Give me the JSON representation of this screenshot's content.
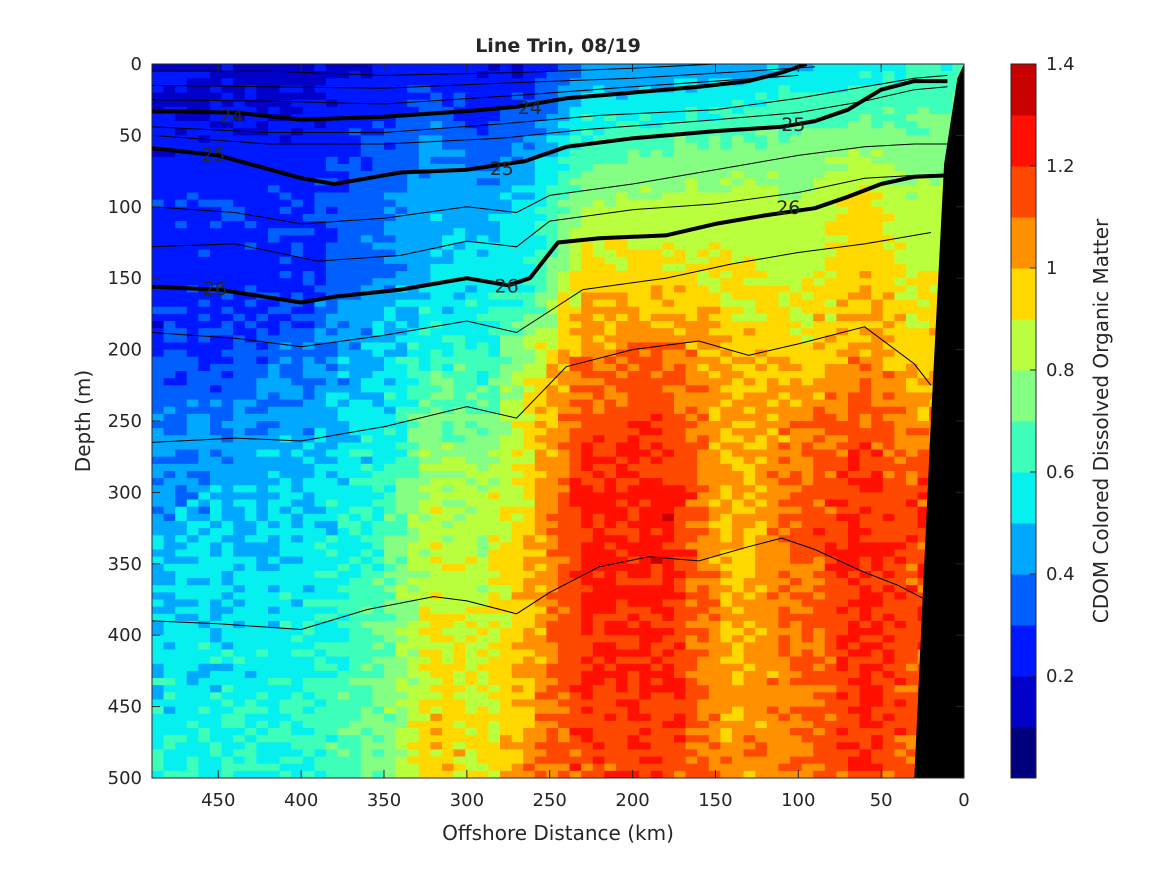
{
  "chart_data": {
    "type": "heatmap",
    "title": "Line Trin, 08/19",
    "xlabel": "Offshore Distance (km)",
    "ylabel": "Depth (m)",
    "xlim": [
      490,
      0
    ],
    "ylim": [
      0,
      500
    ],
    "x_reversed": true,
    "y_reversed": true,
    "x_ticks": [
      450,
      400,
      350,
      300,
      250,
      200,
      150,
      100,
      50,
      0
    ],
    "y_ticks": [
      0,
      50,
      100,
      150,
      200,
      250,
      300,
      350,
      400,
      450,
      500
    ],
    "colorbar": {
      "label": "CDOM Colored Dissolved Organic Matter",
      "range": [
        0,
        1.4
      ],
      "step": 0.1,
      "ticks": [
        0.2,
        0.4,
        0.6,
        0.8,
        1,
        1.2,
        1.4
      ],
      "colors": [
        "#00007f",
        "#0000c8",
        "#0018ff",
        "#0060ff",
        "#00a8ff",
        "#06f0f0",
        "#3dffba",
        "#84ff84",
        "#baff3d",
        "#ffd800",
        "#ff9000",
        "#ff4800",
        "#ff1000",
        "#c80000"
      ]
    },
    "field_columns": [
      {
        "x": 490,
        "values": [
          0.2,
          0.2,
          0.28,
          0.22,
          0.28,
          0.38,
          0.42,
          0.52,
          0.58
        ]
      },
      {
        "x": 450,
        "values": [
          0.18,
          0.22,
          0.3,
          0.26,
          0.3,
          0.4,
          0.46,
          0.54,
          0.6
        ]
      },
      {
        "x": 400,
        "values": [
          0.15,
          0.22,
          0.28,
          0.28,
          0.36,
          0.44,
          0.5,
          0.56,
          0.62
        ]
      },
      {
        "x": 350,
        "values": [
          0.22,
          0.3,
          0.38,
          0.4,
          0.48,
          0.55,
          0.62,
          0.7,
          0.74
        ]
      },
      {
        "x": 320,
        "values": [
          0.28,
          0.4,
          0.48,
          0.5,
          0.62,
          0.75,
          0.85,
          0.92,
          0.98
        ]
      },
      {
        "x": 290,
        "values": [
          0.18,
          0.3,
          0.45,
          0.55,
          0.6,
          0.7,
          0.8,
          0.88,
          0.9
        ]
      },
      {
        "x": 260,
        "values": [
          0.22,
          0.38,
          0.55,
          0.6,
          0.82,
          0.95,
          0.98,
          1.02,
          1.08
        ]
      },
      {
        "x": 230,
        "values": [
          0.4,
          0.62,
          0.8,
          0.95,
          1.05,
          1.15,
          1.22,
          1.2,
          1.15
        ]
      },
      {
        "x": 180,
        "values": [
          0.42,
          0.65,
          0.85,
          0.92,
          1.1,
          1.18,
          1.25,
          1.22,
          1.18
        ]
      },
      {
        "x": 140,
        "values": [
          0.45,
          0.7,
          0.85,
          0.9,
          1.0,
          0.98,
          0.96,
          1.0,
          1.05
        ]
      },
      {
        "x": 100,
        "values": [
          0.5,
          0.72,
          0.82,
          0.86,
          0.94,
          1.05,
          1.12,
          1.1,
          1.08
        ]
      },
      {
        "x": 60,
        "values": [
          0.55,
          0.75,
          0.95,
          0.98,
          1.05,
          1.15,
          1.2,
          1.22,
          1.18
        ]
      },
      {
        "x": 30,
        "values": [
          0.6,
          0.72,
          0.82,
          0.88,
          0.95,
          1.05,
          1.15,
          1.15,
          1.1
        ]
      }
    ],
    "field_depths": [
      0,
      50,
      100,
      150,
      200,
      250,
      300,
      400,
      500
    ],
    "contours_labeled": [
      {
        "label": "24",
        "points": [
          [
            490,
            33
          ],
          [
            440,
            34
          ],
          [
            400,
            39
          ],
          [
            350,
            37
          ],
          [
            300,
            33
          ],
          [
            270,
            30
          ],
          [
            240,
            24
          ],
          [
            200,
            20
          ],
          [
            160,
            16
          ],
          [
            130,
            12
          ],
          [
            110,
            6
          ],
          [
            95,
            0
          ]
        ]
      },
      {
        "label": "25",
        "points": [
          [
            490,
            59
          ],
          [
            450,
            64
          ],
          [
            400,
            80
          ],
          [
            380,
            84
          ],
          [
            340,
            76
          ],
          [
            300,
            74
          ],
          [
            265,
            68
          ],
          [
            240,
            58
          ],
          [
            200,
            52
          ],
          [
            150,
            47
          ],
          [
            110,
            44
          ],
          [
            90,
            40
          ],
          [
            70,
            32
          ],
          [
            50,
            18
          ],
          [
            30,
            12
          ],
          [
            10,
            12
          ]
        ]
      },
      {
        "label": "26",
        "points": [
          [
            490,
            156
          ],
          [
            450,
            158
          ],
          [
            400,
            167
          ],
          [
            380,
            163
          ],
          [
            340,
            158
          ],
          [
            300,
            150
          ],
          [
            275,
            155
          ],
          [
            262,
            150
          ],
          [
            245,
            125
          ],
          [
            220,
            122
          ],
          [
            180,
            120
          ],
          [
            150,
            112
          ],
          [
            120,
            106
          ],
          [
            90,
            101
          ],
          [
            70,
            93
          ],
          [
            50,
            84
          ],
          [
            30,
            79
          ],
          [
            10,
            78
          ]
        ]
      }
    ],
    "contour_labels": [
      {
        "label": "24",
        "x": 442,
        "y": 36
      },
      {
        "label": "24",
        "x": 262,
        "y": 30
      },
      {
        "label": "25",
        "x": 453,
        "y": 63
      },
      {
        "label": "25",
        "x": 279,
        "y": 73
      },
      {
        "label": "25",
        "x": 103,
        "y": 42
      },
      {
        "label": "26",
        "x": 452,
        "y": 157
      },
      {
        "label": "26",
        "x": 276,
        "y": 155
      },
      {
        "label": "26",
        "x": 106,
        "y": 100
      }
    ],
    "contours_thin": [
      [
        [
          490,
          5
        ],
        [
          420,
          5
        ],
        [
          350,
          8
        ],
        [
          270,
          6
        ],
        [
          200,
          3
        ],
        [
          150,
          0
        ]
      ],
      [
        [
          490,
          15
        ],
        [
          420,
          16
        ],
        [
          350,
          17
        ],
        [
          270,
          13
        ],
        [
          200,
          10
        ],
        [
          130,
          5
        ],
        [
          90,
          2
        ]
      ],
      [
        [
          490,
          25
        ],
        [
          420,
          26
        ],
        [
          350,
          28
        ],
        [
          270,
          22
        ],
        [
          200,
          16
        ],
        [
          150,
          12
        ],
        [
          100,
          8
        ]
      ],
      [
        [
          490,
          44
        ],
        [
          420,
          48
        ],
        [
          350,
          48
        ],
        [
          280,
          42
        ],
        [
          220,
          36
        ],
        [
          150,
          32
        ],
        [
          100,
          24
        ],
        [
          60,
          16
        ],
        [
          30,
          10
        ],
        [
          10,
          8
        ]
      ],
      [
        [
          490,
          50
        ],
        [
          420,
          56
        ],
        [
          350,
          56
        ],
        [
          280,
          52
        ],
        [
          230,
          46
        ],
        [
          160,
          40
        ],
        [
          100,
          34
        ],
        [
          60,
          26
        ],
        [
          30,
          18
        ],
        [
          10,
          16
        ]
      ],
      [
        [
          490,
          100
        ],
        [
          440,
          104
        ],
        [
          400,
          112
        ],
        [
          350,
          108
        ],
        [
          300,
          100
        ],
        [
          270,
          104
        ],
        [
          250,
          92
        ],
        [
          200,
          84
        ],
        [
          150,
          74
        ],
        [
          100,
          64
        ],
        [
          60,
          58
        ],
        [
          30,
          56
        ],
        [
          10,
          56
        ]
      ],
      [
        [
          490,
          128
        ],
        [
          440,
          126
        ],
        [
          390,
          138
        ],
        [
          340,
          134
        ],
        [
          300,
          124
        ],
        [
          270,
          128
        ],
        [
          250,
          110
        ],
        [
          200,
          102
        ],
        [
          150,
          98
        ],
        [
          100,
          90
        ],
        [
          60,
          80
        ],
        [
          30,
          78
        ],
        [
          10,
          78
        ]
      ],
      [
        [
          490,
          188
        ],
        [
          440,
          192
        ],
        [
          400,
          198
        ],
        [
          350,
          190
        ],
        [
          300,
          180
        ],
        [
          270,
          188
        ],
        [
          230,
          158
        ],
        [
          180,
          150
        ],
        [
          140,
          140
        ],
        [
          100,
          132
        ],
        [
          60,
          126
        ],
        [
          30,
          120
        ],
        [
          20,
          118
        ]
      ],
      [
        [
          490,
          265
        ],
        [
          440,
          262
        ],
        [
          400,
          264
        ],
        [
          350,
          254
        ],
        [
          300,
          240
        ],
        [
          270,
          248
        ],
        [
          240,
          212
        ],
        [
          200,
          200
        ],
        [
          160,
          194
        ],
        [
          130,
          204
        ],
        [
          100,
          196
        ],
        [
          60,
          184
        ],
        [
          30,
          210
        ],
        [
          20,
          225
        ]
      ],
      [
        [
          490,
          390
        ],
        [
          450,
          392
        ],
        [
          400,
          396
        ],
        [
          360,
          382
        ],
        [
          320,
          373
        ],
        [
          300,
          376
        ],
        [
          270,
          385
        ],
        [
          250,
          370
        ],
        [
          220,
          352
        ],
        [
          190,
          345
        ],
        [
          160,
          348
        ],
        [
          130,
          338
        ],
        [
          110,
          332
        ],
        [
          90,
          340
        ],
        [
          60,
          356
        ],
        [
          40,
          365
        ],
        [
          25,
          374
        ]
      ]
    ],
    "land_boundary": [
      [
        30,
        500
      ],
      [
        20,
        250
      ],
      [
        12,
        70
      ],
      [
        4,
        10
      ],
      [
        0,
        0
      ]
    ],
    "land_color": "#000000"
  }
}
